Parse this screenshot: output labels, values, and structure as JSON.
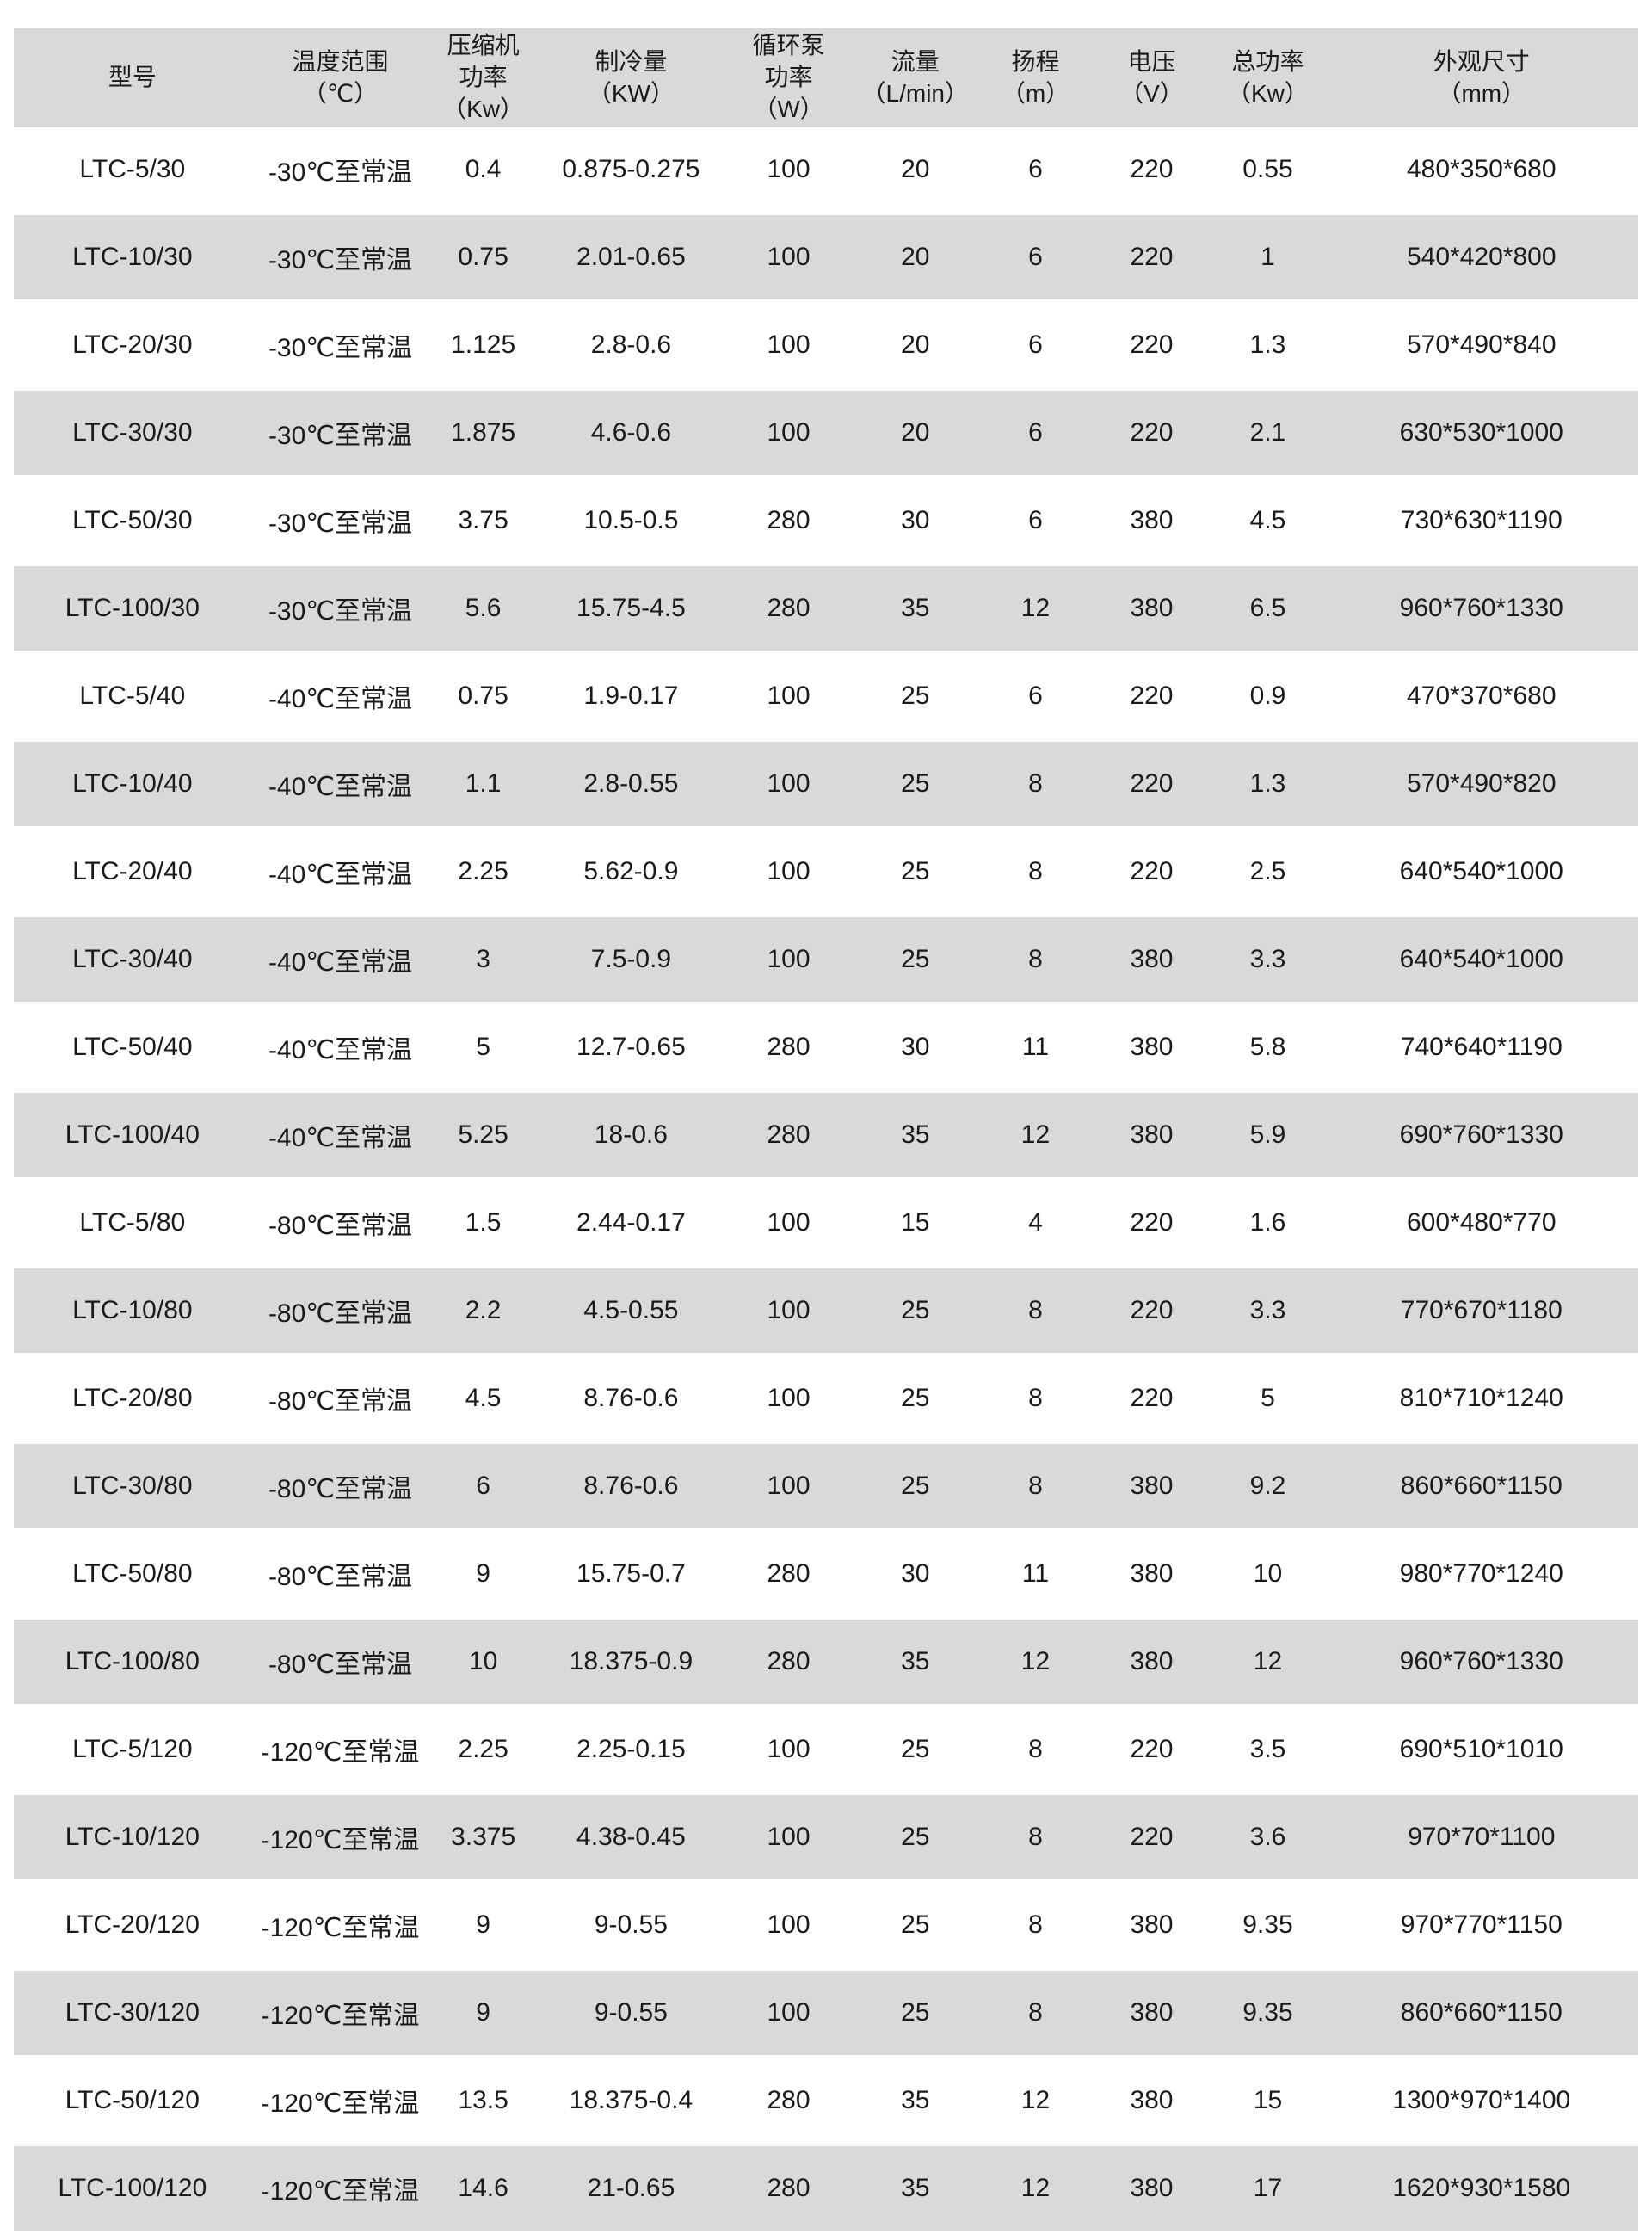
{
  "table": {
    "colors": {
      "header_bg": "#d9d9d9",
      "row_bg": "#ffffff",
      "row_alt_bg": "#d9d9d9",
      "text": "#1a1a1a"
    },
    "columns": [
      {
        "key": "model",
        "label": "型号"
      },
      {
        "key": "temp_range",
        "label": "温度范围\n（℃）"
      },
      {
        "key": "compressor_power",
        "label": "压缩机\n功率\n（Kw）"
      },
      {
        "key": "cooling_capacity",
        "label": "制冷量\n（KW）"
      },
      {
        "key": "pump_power",
        "label": "循环泵\n功率\n（W）"
      },
      {
        "key": "flow",
        "label": "流量\n（L/min）"
      },
      {
        "key": "head",
        "label": "扬程\n（m）"
      },
      {
        "key": "voltage",
        "label": "电压\n（V）"
      },
      {
        "key": "total_power",
        "label": "总功率\n（Kw）"
      },
      {
        "key": "dimensions",
        "label": "外观尺寸\n（mm）"
      }
    ],
    "rows": [
      [
        "LTC-5/30",
        "-30℃至常温",
        "0.4",
        "0.875-0.275",
        "100",
        "20",
        "6",
        "220",
        "0.55",
        "480*350*680"
      ],
      [
        "LTC-10/30",
        "-30℃至常温",
        "0.75",
        "2.01-0.65",
        "100",
        "20",
        "6",
        "220",
        "1",
        "540*420*800"
      ],
      [
        "LTC-20/30",
        "-30℃至常温",
        "1.125",
        "2.8-0.6",
        "100",
        "20",
        "6",
        "220",
        "1.3",
        "570*490*840"
      ],
      [
        "LTC-30/30",
        "-30℃至常温",
        "1.875",
        "4.6-0.6",
        "100",
        "20",
        "6",
        "220",
        "2.1",
        "630*530*1000"
      ],
      [
        "LTC-50/30",
        "-30℃至常温",
        "3.75",
        "10.5-0.5",
        "280",
        "30",
        "6",
        "380",
        "4.5",
        "730*630*1190"
      ],
      [
        "LTC-100/30",
        "-30℃至常温",
        "5.6",
        "15.75-4.5",
        "280",
        "35",
        "12",
        "380",
        "6.5",
        "960*760*1330"
      ],
      [
        "LTC-5/40",
        "-40℃至常温",
        "0.75",
        "1.9-0.17",
        "100",
        "25",
        "6",
        "220",
        "0.9",
        "470*370*680"
      ],
      [
        "LTC-10/40",
        "-40℃至常温",
        "1.1",
        "2.8-0.55",
        "100",
        "25",
        "8",
        "220",
        "1.3",
        "570*490*820"
      ],
      [
        "LTC-20/40",
        "-40℃至常温",
        "2.25",
        "5.62-0.9",
        "100",
        "25",
        "8",
        "220",
        "2.5",
        "640*540*1000"
      ],
      [
        "LTC-30/40",
        "-40℃至常温",
        "3",
        "7.5-0.9",
        "100",
        "25",
        "8",
        "380",
        "3.3",
        "640*540*1000"
      ],
      [
        "LTC-50/40",
        "-40℃至常温",
        "5",
        "12.7-0.65",
        "280",
        "30",
        "11",
        "380",
        "5.8",
        "740*640*1190"
      ],
      [
        "LTC-100/40",
        "-40℃至常温",
        "5.25",
        "18-0.6",
        "280",
        "35",
        "12",
        "380",
        "5.9",
        "690*760*1330"
      ],
      [
        "LTC-5/80",
        "-80℃至常温",
        "1.5",
        "2.44-0.17",
        "100",
        "15",
        "4",
        "220",
        "1.6",
        "600*480*770"
      ],
      [
        "LTC-10/80",
        "-80℃至常温",
        "2.2",
        "4.5-0.55",
        "100",
        "25",
        "8",
        "220",
        "3.3",
        "770*670*1180"
      ],
      [
        "LTC-20/80",
        "-80℃至常温",
        "4.5",
        "8.76-0.6",
        "100",
        "25",
        "8",
        "220",
        "5",
        "810*710*1240"
      ],
      [
        "LTC-30/80",
        "-80℃至常温",
        "6",
        "8.76-0.6",
        "100",
        "25",
        "8",
        "380",
        "9.2",
        "860*660*1150"
      ],
      [
        "LTC-50/80",
        "-80℃至常温",
        "9",
        "15.75-0.7",
        "280",
        "30",
        "11",
        "380",
        "10",
        "980*770*1240"
      ],
      [
        "LTC-100/80",
        "-80℃至常温",
        "10",
        "18.375-0.9",
        "280",
        "35",
        "12",
        "380",
        "12",
        "960*760*1330"
      ],
      [
        "LTC-5/120",
        "-120℃至常温",
        "2.25",
        "2.25-0.15",
        "100",
        "25",
        "8",
        "220",
        "3.5",
        "690*510*1010"
      ],
      [
        "LTC-10/120",
        "-120℃至常温",
        "3.375",
        "4.38-0.45",
        "100",
        "25",
        "8",
        "220",
        "3.6",
        "970*70*1100"
      ],
      [
        "LTC-20/120",
        "-120℃至常温",
        "9",
        "9-0.55",
        "100",
        "25",
        "8",
        "380",
        "9.35",
        "970*770*1150"
      ],
      [
        "LTC-30/120",
        "-120℃至常温",
        "9",
        "9-0.55",
        "100",
        "25",
        "8",
        "380",
        "9.35",
        "860*660*1150"
      ],
      [
        "LTC-50/120",
        "-120℃至常温",
        "13.5",
        "18.375-0.4",
        "280",
        "35",
        "12",
        "380",
        "15",
        "1300*970*1400"
      ],
      [
        "LTC-100/120",
        "-120℃至常温",
        "14.6",
        "21-0.65",
        "280",
        "35",
        "12",
        "380",
        "17",
        "1620*930*1580"
      ]
    ],
    "column_widths_pct": [
      14.6,
      11.0,
      6.6,
      11.6,
      7.8,
      7.8,
      7.0,
      7.3,
      7.0,
      19.3
    ]
  }
}
